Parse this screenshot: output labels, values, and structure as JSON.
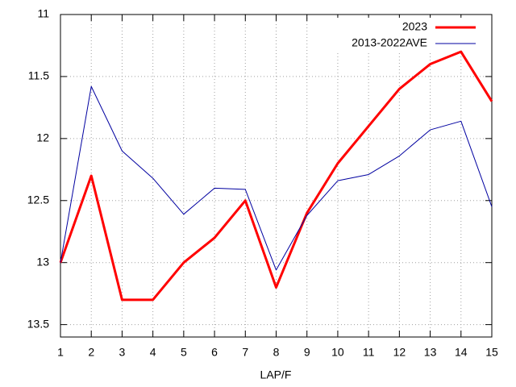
{
  "chart_data": {
    "type": "line",
    "x_label": "LAP/F",
    "x": [
      1,
      2,
      3,
      4,
      5,
      6,
      7,
      8,
      9,
      10,
      11,
      12,
      13,
      14,
      15
    ],
    "xlim": [
      1,
      15
    ],
    "xticks": [
      1,
      2,
      3,
      4,
      5,
      6,
      7,
      8,
      9,
      10,
      11,
      12,
      13,
      14,
      15
    ],
    "ylim": [
      13.6,
      11
    ],
    "yticks": [
      11,
      11.5,
      12,
      12.5,
      13,
      13.5
    ],
    "y_reversed": true,
    "grid": true,
    "legend": "top-right",
    "series": [
      {
        "name": "2023",
        "color": "#ff0000",
        "width": 3,
        "values": [
          13,
          12.3,
          13.3,
          13.3,
          13,
          12.8,
          12.5,
          13.2,
          12.6,
          12.2,
          11.9,
          11.6,
          11.4,
          11.3,
          11.7
        ]
      },
      {
        "name": "2013-2022AVE",
        "color": "#0000a0",
        "width": 1,
        "values": [
          13.0,
          11.58,
          12.1,
          12.32,
          12.61,
          12.4,
          12.41,
          13.06,
          12.62,
          12.34,
          12.29,
          12.14,
          11.93,
          11.86,
          12.55
        ]
      }
    ]
  }
}
